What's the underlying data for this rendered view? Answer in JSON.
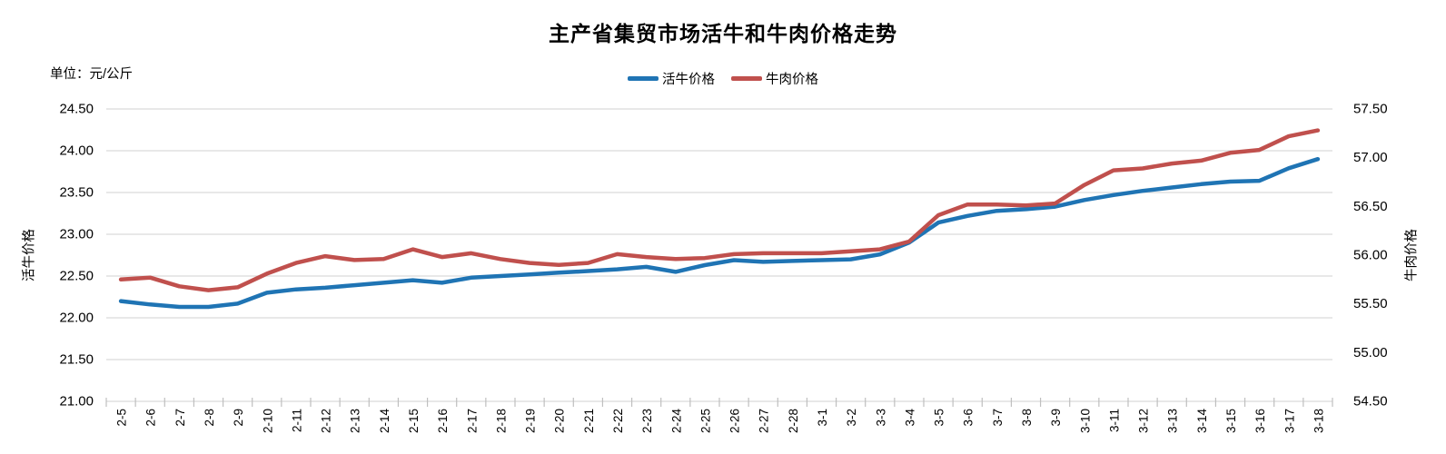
{
  "chart_data": {
    "type": "line",
    "title": "主产省集贸市场活牛和牛肉价格走势",
    "unit_label": "单位：元/公斤",
    "legend_position": "top-center",
    "grid": true,
    "categories": [
      "2-5",
      "2-6",
      "2-7",
      "2-8",
      "2-9",
      "2-10",
      "2-11",
      "2-12",
      "2-13",
      "2-14",
      "2-15",
      "2-16",
      "2-17",
      "2-18",
      "2-19",
      "2-20",
      "2-21",
      "2-22",
      "2-23",
      "2-24",
      "2-25",
      "2-26",
      "2-27",
      "2-28",
      "3-1",
      "3-2",
      "3-3",
      "3-4",
      "3-5",
      "3-6",
      "3-7",
      "3-8",
      "3-9",
      "3-10",
      "3-11",
      "3-12",
      "3-13",
      "3-14",
      "3-15",
      "3-16",
      "3-17",
      "3-18"
    ],
    "series": [
      {
        "name": "活牛价格",
        "axis": "left",
        "color": "#1F74B4",
        "values": [
          22.2,
          22.16,
          22.13,
          22.13,
          22.17,
          22.3,
          22.34,
          22.36,
          22.39,
          22.42,
          22.45,
          22.42,
          22.48,
          22.5,
          22.52,
          22.54,
          22.56,
          22.58,
          22.61,
          22.55,
          22.63,
          22.69,
          22.67,
          22.68,
          22.69,
          22.7,
          22.76,
          22.9,
          23.14,
          23.22,
          23.28,
          23.3,
          23.33,
          23.41,
          23.47,
          23.52,
          23.56,
          23.6,
          23.63,
          23.64,
          23.79,
          23.9
        ]
      },
      {
        "name": "牛肉价格",
        "axis": "right",
        "color": "#C0504D",
        "values": [
          55.75,
          55.77,
          55.68,
          55.64,
          55.67,
          55.81,
          55.92,
          55.99,
          55.95,
          55.96,
          56.06,
          55.98,
          56.02,
          55.96,
          55.92,
          55.9,
          55.92,
          56.01,
          55.98,
          55.96,
          55.97,
          56.01,
          56.02,
          56.02,
          56.02,
          56.04,
          56.06,
          56.14,
          56.41,
          56.52,
          56.52,
          56.51,
          56.53,
          56.72,
          56.87,
          56.89,
          56.94,
          56.97,
          57.05,
          57.08,
          57.22,
          57.28
        ]
      }
    ],
    "left_axis": {
      "label": "活牛价格",
      "min": 21.0,
      "max": 24.5,
      "step": 0.5
    },
    "right_axis": {
      "label": "牛肉价格",
      "min": 54.5,
      "max": 57.5,
      "step": 0.5
    },
    "colors": {
      "grid": "#D9D9D9",
      "tick": "#BFBFBF",
      "text": "#000000",
      "background": "#FFFFFF"
    }
  }
}
